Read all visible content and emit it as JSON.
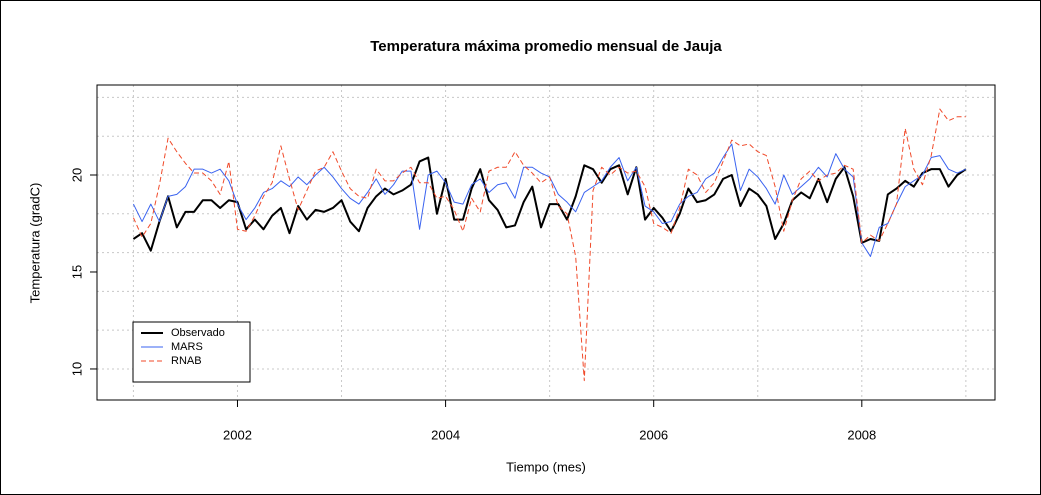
{
  "chart_data": {
    "type": "line",
    "title": "Temperatura máxima promedio mensual de Jauja",
    "xlabel": "Tiempo (mes)",
    "ylabel": "Temperatura (gradC)",
    "x": [
      2001,
      2001.083,
      2001.167,
      2001.25,
      2001.333,
      2001.417,
      2001.5,
      2001.583,
      2001.667,
      2001.75,
      2001.833,
      2001.917,
      2002,
      2002.083,
      2002.167,
      2002.25,
      2002.333,
      2002.417,
      2002.5,
      2002.583,
      2002.667,
      2002.75,
      2002.833,
      2002.917,
      2003,
      2003.083,
      2003.167,
      2003.25,
      2003.333,
      2003.417,
      2003.5,
      2003.583,
      2003.667,
      2003.75,
      2003.833,
      2003.917,
      2004,
      2004.083,
      2004.167,
      2004.25,
      2004.333,
      2004.417,
      2004.5,
      2004.583,
      2004.667,
      2004.75,
      2004.833,
      2004.917,
      2005,
      2005.083,
      2005.167,
      2005.25,
      2005.333,
      2005.417,
      2005.5,
      2005.583,
      2005.667,
      2005.75,
      2005.833,
      2005.917,
      2006,
      2006.083,
      2006.167,
      2006.25,
      2006.333,
      2006.417,
      2006.5,
      2006.583,
      2006.667,
      2006.75,
      2006.833,
      2006.917,
      2007,
      2007.083,
      2007.167,
      2007.25,
      2007.333,
      2007.417,
      2007.5,
      2007.583,
      2007.667,
      2007.75,
      2007.833,
      2007.917,
      2008,
      2008.083,
      2008.167,
      2008.25,
      2008.333,
      2008.417,
      2008.5,
      2008.583,
      2008.667,
      2008.75,
      2008.833,
      2008.917,
      2009
    ],
    "series": [
      {
        "name": "Observado",
        "color": "#000000",
        "width": 2,
        "dash": false,
        "values": [
          16.7,
          17.0,
          16.1,
          17.6,
          18.9,
          17.3,
          18.1,
          18.1,
          18.7,
          18.7,
          18.3,
          18.7,
          18.6,
          17.2,
          17.7,
          17.2,
          17.9,
          18.3,
          17.0,
          18.4,
          17.7,
          18.2,
          18.1,
          18.3,
          18.7,
          17.6,
          17.1,
          18.3,
          18.9,
          19.3,
          19.0,
          19.2,
          19.5,
          20.7,
          20.9,
          18.0,
          19.8,
          17.7,
          17.7,
          19.3,
          20.3,
          18.7,
          18.2,
          17.3,
          17.4,
          18.6,
          19.4,
          17.3,
          18.5,
          18.5,
          17.7,
          18.9,
          20.5,
          20.3,
          19.6,
          20.3,
          20.5,
          19.0,
          20.4,
          17.7,
          18.3,
          17.8,
          17.1,
          18.0,
          19.3,
          18.6,
          18.7,
          19.0,
          19.8,
          20.0,
          18.4,
          19.3,
          19.0,
          18.4,
          16.7,
          17.5,
          18.7,
          19.1,
          18.8,
          19.8,
          18.6,
          19.8,
          20.4,
          18.9,
          16.5,
          16.7,
          16.6,
          19.0,
          19.3,
          19.7,
          19.4,
          20.1,
          20.3,
          20.3,
          19.4,
          20.0,
          20.3
        ]
      },
      {
        "name": "MARS",
        "color": "#3a63f0",
        "width": 1,
        "dash": false,
        "values": [
          18.5,
          17.6,
          18.5,
          17.6,
          18.9,
          19.0,
          19.4,
          20.3,
          20.3,
          20.1,
          20.3,
          19.7,
          18.5,
          17.7,
          18.3,
          19.1,
          19.3,
          19.7,
          19.4,
          19.9,
          19.5,
          20.0,
          20.4,
          19.9,
          19.3,
          18.8,
          18.5,
          19.1,
          19.8,
          19.0,
          19.5,
          20.2,
          20.2,
          17.2,
          20.0,
          20.2,
          19.6,
          18.6,
          18.5,
          19.5,
          19.8,
          19.1,
          19.5,
          19.6,
          18.8,
          20.4,
          20.4,
          20.1,
          19.9,
          19.0,
          18.6,
          18.1,
          19.1,
          19.4,
          19.7,
          20.4,
          20.9,
          19.7,
          20.4,
          18.4,
          18.1,
          17.5,
          17.6,
          18.5,
          18.9,
          19.1,
          19.8,
          20.1,
          20.9,
          21.6,
          19.2,
          20.3,
          19.9,
          19.3,
          18.5,
          20.0,
          19.0,
          19.4,
          19.8,
          20.4,
          19.9,
          21.1,
          20.3,
          19.9,
          16.5,
          15.8,
          17.3,
          17.5,
          18.5,
          19.4,
          19.7,
          20.0,
          20.9,
          21.0,
          20.3,
          20.1,
          20.3
        ]
      },
      {
        "name": "RNAB",
        "color": "#f04a2a",
        "width": 1,
        "dash": true,
        "values": [
          17.8,
          16.8,
          17.5,
          19.5,
          21.9,
          21.2,
          20.6,
          20.1,
          20.1,
          19.7,
          19.0,
          20.7,
          17.2,
          17.1,
          17.9,
          18.9,
          19.6,
          21.5,
          19.8,
          18.2,
          19.2,
          20.2,
          20.4,
          21.2,
          20.2,
          19.3,
          18.9,
          18.8,
          20.3,
          19.7,
          19.7,
          20.1,
          20.4,
          19.6,
          19.6,
          18.8,
          18.9,
          18.2,
          17.1,
          18.8,
          18.1,
          20.2,
          20.4,
          20.4,
          21.2,
          20.5,
          20.1,
          19.6,
          19.9,
          18.4,
          18.0,
          15.8,
          9.4,
          19.2,
          20.4,
          20.0,
          20.4,
          20.1,
          20.2,
          19.4,
          17.5,
          17.3,
          17.0,
          18.3,
          20.3,
          20.0,
          19.1,
          19.6,
          20.7,
          21.8,
          21.5,
          21.6,
          21.2,
          21.0,
          19.4,
          17.1,
          18.7,
          19.8,
          20.2,
          19.7,
          20.0,
          20.1,
          20.5,
          20.3,
          16.5,
          16.9,
          16.6,
          17.5,
          18.5,
          22.4,
          20.3,
          19.5,
          21.0,
          23.4,
          22.8,
          23.0,
          23.0
        ]
      }
    ],
    "xlim": [
      2000.65,
      2009.28
    ],
    "ylim": [
      8.4,
      24.64
    ],
    "xticks": [
      2002,
      2004,
      2006,
      2008
    ],
    "yticks": [
      10,
      15,
      20
    ],
    "xgrid": [
      2001,
      2002,
      2003,
      2004,
      2005,
      2006,
      2007,
      2008,
      2009
    ],
    "ygrid": [
      10,
      12,
      14,
      16,
      18,
      20,
      22,
      24
    ],
    "grid": true,
    "legend": "bottomleft"
  }
}
